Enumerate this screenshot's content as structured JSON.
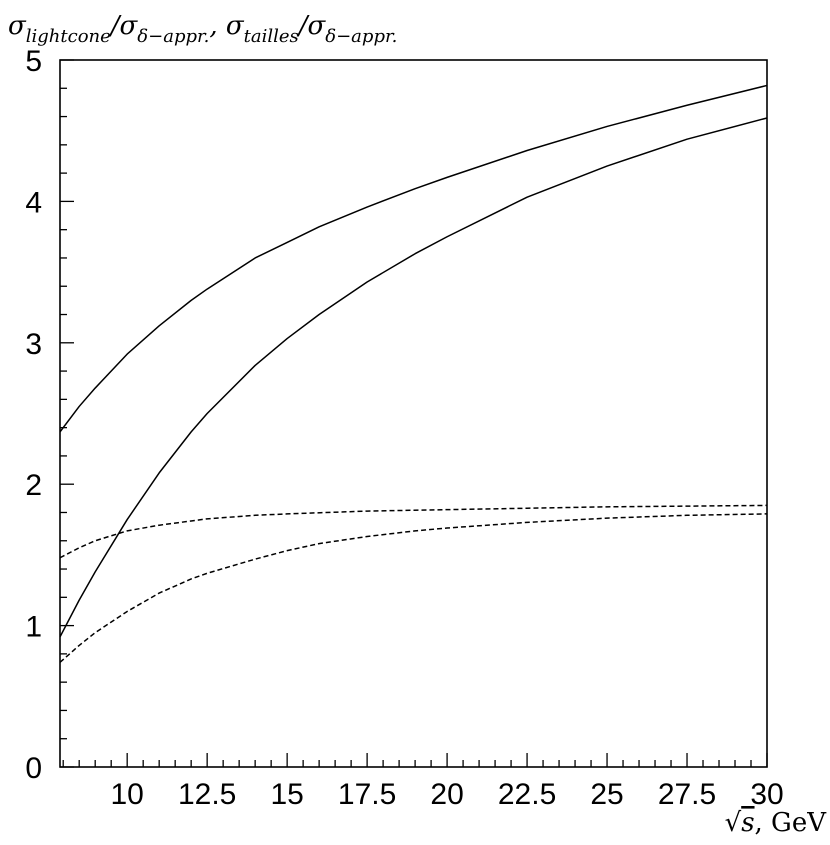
{
  "chart_data": {
    "type": "line",
    "title": "σ_lightcone/σ_δ−appr., σ_tailles/σ_δ−appr.",
    "title_parts": {
      "sigma1": "σ",
      "sub1": "lightcone",
      "slash1": "/σ",
      "sub_delta1": "δ−appr.",
      "comma": ", σ",
      "sub2": "tailles",
      "slash2": "/σ",
      "sub_delta2": "δ−appr."
    },
    "xlabel": "√s, GeV",
    "xlabel_parts": {
      "root": "√",
      "s": "s",
      "unit": ", GeV"
    },
    "ylabel": "",
    "xlim": [
      7.9,
      30
    ],
    "ylim": [
      0,
      5
    ],
    "x_ticks": [
      10,
      12.5,
      15,
      17.5,
      20,
      22.5,
      25,
      27.5,
      30
    ],
    "x_tick_labels": [
      "10",
      "12.5",
      "15",
      "17.5",
      "20",
      "22.5",
      "25",
      "27.5",
      "30"
    ],
    "y_ticks": [
      0,
      1,
      2,
      3,
      4,
      5
    ],
    "y_tick_labels": [
      "0",
      "1",
      "2",
      "3",
      "4",
      "5"
    ],
    "grid": false,
    "legend": "none",
    "series": [
      {
        "style": "solid",
        "x": [
          7.9,
          8.5,
          9,
          10,
          11,
          12,
          12.5,
          14,
          15,
          16,
          17.5,
          19,
          20,
          22.5,
          25,
          27.5,
          30
        ],
        "y": [
          2.37,
          2.55,
          2.68,
          2.92,
          3.12,
          3.3,
          3.38,
          3.6,
          3.71,
          3.82,
          3.96,
          4.09,
          4.17,
          4.36,
          4.53,
          4.68,
          4.82
        ]
      },
      {
        "style": "solid",
        "x": [
          7.9,
          8.5,
          9,
          10,
          11,
          12,
          12.5,
          14,
          15,
          16,
          17.5,
          19,
          20,
          22.5,
          25,
          27.5,
          30
        ],
        "y": [
          0.92,
          1.18,
          1.38,
          1.75,
          2.08,
          2.37,
          2.5,
          2.84,
          3.03,
          3.2,
          3.43,
          3.63,
          3.75,
          4.03,
          4.25,
          4.44,
          4.59
        ]
      },
      {
        "style": "dashed",
        "x": [
          7.9,
          8.5,
          9,
          10,
          11,
          12,
          12.5,
          14,
          15,
          17.5,
          20,
          22.5,
          25,
          27.5,
          30
        ],
        "y": [
          1.48,
          1.55,
          1.6,
          1.67,
          1.71,
          1.74,
          1.755,
          1.78,
          1.79,
          1.81,
          1.82,
          1.83,
          1.84,
          1.845,
          1.85
        ]
      },
      {
        "style": "dashed",
        "x": [
          7.9,
          8.5,
          9,
          10,
          11,
          12,
          12.5,
          14,
          15,
          16,
          17.5,
          19,
          20,
          22.5,
          25,
          27.5,
          30
        ],
        "y": [
          0.74,
          0.86,
          0.95,
          1.1,
          1.23,
          1.33,
          1.37,
          1.47,
          1.53,
          1.58,
          1.63,
          1.67,
          1.69,
          1.73,
          1.76,
          1.78,
          1.79
        ]
      }
    ]
  }
}
